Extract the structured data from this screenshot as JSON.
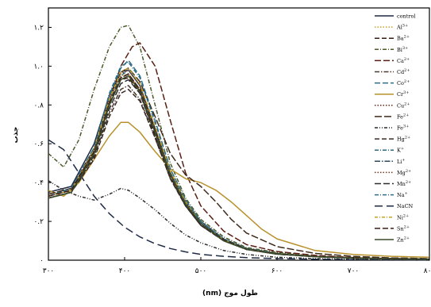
{
  "chart_data": {
    "type": "line",
    "xlabel": "طول موج (nm)",
    "ylabel": "جذب",
    "xlim": [
      300,
      800
    ],
    "ylim": [
      0,
      1.3
    ],
    "x_ticks": [
      300,
      400,
      500,
      600,
      700,
      800
    ],
    "x_tick_labels": [
      "۳۰۰",
      "۴۰۰",
      "۵۰۰",
      "۶۰۰",
      "۷۰۰",
      "۸۰۰"
    ],
    "y_ticks": [
      0,
      0.2,
      0.4,
      0.6,
      0.8,
      1.0,
      1.2
    ],
    "y_tick_labels": [
      "۰",
      "۰.۲",
      "۰.۴",
      "۰.۶",
      "۰.۸",
      "۱.۰",
      "۱.۲"
    ],
    "grid": false,
    "legend_position": "right",
    "legend_labels": [
      "control",
      "Al3+",
      "Ba2+",
      "Bi3+",
      "Ca2+",
      "Cd2+",
      "Co2+",
      "Cr3+",
      "Cu2+",
      "Fe2+",
      "Fe3+",
      "Hg2+",
      "K+",
      "Li+",
      "Mg2+",
      "Mn2+",
      "Na+",
      "NaCN",
      "Ni2+",
      "Sn2+",
      "Zn2+"
    ],
    "series": [
      {
        "name": "control",
        "color": "#1f2a44",
        "dash": "",
        "x": [
          300,
          330,
          360,
          380,
          395,
          405,
          420,
          440,
          460,
          480,
          500,
          530,
          560,
          600,
          650,
          700,
          750,
          800
        ],
        "y": [
          0.35,
          0.38,
          0.6,
          0.85,
          0.97,
          0.98,
          0.9,
          0.68,
          0.45,
          0.3,
          0.2,
          0.11,
          0.06,
          0.035,
          0.02,
          0.012,
          0.008,
          0.005
        ]
      },
      {
        "name": "Al3+",
        "color": "#c9a227",
        "dash": "1.5,2",
        "x": [
          300,
          330,
          360,
          380,
          395,
          405,
          420,
          440,
          460,
          480,
          500,
          530,
          560,
          600,
          650,
          700,
          750,
          800
        ],
        "y": [
          0.33,
          0.36,
          0.57,
          0.82,
          0.95,
          0.96,
          0.88,
          0.66,
          0.43,
          0.29,
          0.19,
          0.105,
          0.058,
          0.033,
          0.019,
          0.011,
          0.007,
          0.005
        ]
      },
      {
        "name": "Ba2+",
        "color": "#3a1b14",
        "dash": "6,3",
        "x": [
          300,
          330,
          360,
          380,
          395,
          405,
          420,
          440,
          460,
          480,
          500,
          530,
          560,
          600,
          650,
          700,
          750,
          800
        ],
        "y": [
          0.32,
          0.35,
          0.55,
          0.8,
          0.93,
          0.94,
          0.86,
          0.64,
          0.42,
          0.28,
          0.18,
          0.1,
          0.056,
          0.032,
          0.018,
          0.011,
          0.007,
          0.005
        ]
      },
      {
        "name": "Bi3+",
        "color": "#4a5a2a",
        "dash": "5,2,1,2",
        "x": [
          300,
          320,
          340,
          360,
          380,
          395,
          405,
          420,
          440,
          460,
          480,
          500,
          530,
          560,
          600,
          650,
          700,
          750,
          800
        ],
        "y": [
          0.55,
          0.48,
          0.62,
          0.88,
          1.1,
          1.2,
          1.21,
          1.1,
          0.8,
          0.5,
          0.32,
          0.21,
          0.12,
          0.065,
          0.04,
          0.022,
          0.013,
          0.008,
          0.005
        ]
      },
      {
        "name": "Ca2+",
        "color": "#5a1e12",
        "dash": "8,3",
        "x": [
          300,
          330,
          360,
          380,
          395,
          410,
          420,
          440,
          460,
          480,
          500,
          530,
          560,
          600,
          650,
          700,
          750,
          800
        ],
        "y": [
          0.34,
          0.37,
          0.55,
          0.82,
          1.0,
          1.1,
          1.12,
          1.0,
          0.72,
          0.45,
          0.28,
          0.15,
          0.08,
          0.045,
          0.025,
          0.014,
          0.009,
          0.006
        ]
      },
      {
        "name": "Cd2+",
        "color": "#4a3a30",
        "dash": "6,2,1.5,2",
        "x": [
          300,
          330,
          360,
          380,
          395,
          405,
          420,
          440,
          460,
          480,
          500,
          530,
          560,
          600,
          650,
          700,
          750,
          800
        ],
        "y": [
          0.32,
          0.35,
          0.53,
          0.76,
          0.88,
          0.9,
          0.83,
          0.63,
          0.42,
          0.28,
          0.18,
          0.1,
          0.055,
          0.031,
          0.018,
          0.011,
          0.007,
          0.005
        ]
      },
      {
        "name": "Co2+",
        "color": "#2f6f86",
        "dash": "7,3",
        "x": [
          300,
          330,
          360,
          380,
          395,
          405,
          420,
          440,
          460,
          480,
          500,
          530,
          560,
          600,
          650,
          700,
          750,
          800
        ],
        "y": [
          0.33,
          0.37,
          0.58,
          0.85,
          0.99,
          1.03,
          0.95,
          0.72,
          0.47,
          0.31,
          0.2,
          0.11,
          0.06,
          0.034,
          0.019,
          0.011,
          0.007,
          0.005
        ]
      },
      {
        "name": "Cr3+",
        "color": "#b8912a",
        "dash": "",
        "x": [
          300,
          320,
          340,
          360,
          380,
          395,
          405,
          420,
          440,
          460,
          480,
          500,
          520,
          540,
          560,
          580,
          600,
          650,
          700,
          750,
          800
        ],
        "y": [
          0.36,
          0.33,
          0.4,
          0.52,
          0.64,
          0.71,
          0.71,
          0.66,
          0.56,
          0.47,
          0.42,
          0.4,
          0.36,
          0.3,
          0.23,
          0.16,
          0.11,
          0.05,
          0.03,
          0.02,
          0.015
        ]
      },
      {
        "name": "Cu2+",
        "color": "#6e2a1e",
        "dash": "1.5,2",
        "x": [
          300,
          330,
          360,
          380,
          395,
          405,
          420,
          440,
          460,
          480,
          500,
          530,
          560,
          600,
          650,
          700,
          750,
          800
        ],
        "y": [
          0.33,
          0.36,
          0.56,
          0.8,
          0.94,
          0.96,
          0.88,
          0.66,
          0.44,
          0.29,
          0.19,
          0.105,
          0.058,
          0.033,
          0.019,
          0.011,
          0.007,
          0.005
        ]
      },
      {
        "name": "Fe2+",
        "color": "#3e2a1a",
        "dash": "9,3",
        "x": [
          300,
          330,
          360,
          380,
          395,
          405,
          420,
          440,
          460,
          480,
          500,
          520,
          540,
          560,
          600,
          650,
          700,
          750,
          800
        ],
        "y": [
          0.34,
          0.37,
          0.57,
          0.83,
          0.97,
          0.99,
          0.92,
          0.74,
          0.55,
          0.44,
          0.38,
          0.3,
          0.21,
          0.14,
          0.07,
          0.035,
          0.02,
          0.012,
          0.008
        ]
      },
      {
        "name": "Fe3+",
        "color": "#2a2a2a",
        "dash": "4,2,1,2,1,2",
        "x": [
          300,
          320,
          340,
          360,
          380,
          395,
          405,
          420,
          440,
          460,
          480,
          500,
          530,
          560,
          600,
          650,
          700,
          750,
          800
        ],
        "y": [
          0.41,
          0.36,
          0.33,
          0.31,
          0.34,
          0.37,
          0.36,
          0.32,
          0.26,
          0.19,
          0.13,
          0.09,
          0.05,
          0.03,
          0.015,
          0.008,
          0.004,
          0.002,
          0.001
        ]
      },
      {
        "name": "Hg2+",
        "color": "#3a2a25",
        "dash": "6,3",
        "x": [
          300,
          330,
          360,
          380,
          395,
          405,
          420,
          440,
          460,
          480,
          500,
          530,
          560,
          600,
          650,
          700,
          750,
          800
        ],
        "y": [
          0.32,
          0.35,
          0.52,
          0.74,
          0.86,
          0.88,
          0.82,
          0.63,
          0.42,
          0.28,
          0.18,
          0.1,
          0.055,
          0.031,
          0.018,
          0.011,
          0.007,
          0.005
        ]
      },
      {
        "name": "K+",
        "color": "#2e6a80",
        "dash": "5,2,1,2",
        "x": [
          300,
          330,
          360,
          380,
          395,
          405,
          420,
          440,
          460,
          480,
          500,
          530,
          560,
          600,
          650,
          700,
          750,
          800
        ],
        "y": [
          0.33,
          0.36,
          0.56,
          0.82,
          0.95,
          0.98,
          0.9,
          0.68,
          0.45,
          0.3,
          0.19,
          0.105,
          0.058,
          0.033,
          0.019,
          0.011,
          0.007,
          0.005
        ]
      },
      {
        "name": "Li+",
        "color": "#2a4a5a",
        "dash": "7,2,1.5,2",
        "x": [
          300,
          330,
          360,
          380,
          395,
          405,
          420,
          440,
          460,
          480,
          500,
          530,
          560,
          600,
          650,
          700,
          750,
          800
        ],
        "y": [
          0.32,
          0.35,
          0.55,
          0.8,
          0.93,
          0.95,
          0.87,
          0.66,
          0.44,
          0.29,
          0.19,
          0.1,
          0.056,
          0.032,
          0.018,
          0.011,
          0.007,
          0.005
        ]
      },
      {
        "name": "Mg2+",
        "color": "#7a3a20",
        "dash": "1.5,2",
        "x": [
          300,
          330,
          360,
          380,
          395,
          405,
          420,
          440,
          460,
          480,
          500,
          530,
          560,
          600,
          650,
          700,
          750,
          800
        ],
        "y": [
          0.33,
          0.36,
          0.57,
          0.83,
          0.96,
          0.98,
          0.9,
          0.68,
          0.45,
          0.3,
          0.19,
          0.105,
          0.058,
          0.033,
          0.019,
          0.011,
          0.007,
          0.005
        ]
      },
      {
        "name": "Mn2+",
        "color": "#2e2e2e",
        "dash": "8,3",
        "x": [
          300,
          330,
          360,
          380,
          395,
          405,
          420,
          440,
          460,
          480,
          500,
          530,
          560,
          600,
          650,
          700,
          750,
          800
        ],
        "y": [
          0.32,
          0.35,
          0.54,
          0.78,
          0.91,
          0.93,
          0.86,
          0.65,
          0.43,
          0.28,
          0.18,
          0.1,
          0.056,
          0.032,
          0.018,
          0.011,
          0.007,
          0.005
        ]
      },
      {
        "name": "Na+",
        "color": "#2f6f86",
        "dash": "5,2,1,2",
        "x": [
          300,
          330,
          360,
          380,
          395,
          405,
          420,
          440,
          460,
          480,
          500,
          530,
          560,
          600,
          650,
          700,
          750,
          800
        ],
        "y": [
          0.33,
          0.37,
          0.58,
          0.86,
          1.0,
          1.02,
          0.94,
          0.71,
          0.47,
          0.31,
          0.2,
          0.11,
          0.06,
          0.034,
          0.019,
          0.011,
          0.007,
          0.005
        ]
      },
      {
        "name": "NaCN",
        "color": "#1f2a44",
        "dash": "10,5",
        "x": [
          300,
          320,
          340,
          360,
          380,
          400,
          420,
          440,
          460,
          480,
          500,
          530,
          560,
          600,
          650,
          700,
          750,
          800
        ],
        "y": [
          0.62,
          0.57,
          0.45,
          0.33,
          0.24,
          0.17,
          0.12,
          0.085,
          0.06,
          0.043,
          0.03,
          0.02,
          0.013,
          0.008,
          0.005,
          0.003,
          0.002,
          0.001
        ]
      },
      {
        "name": "Ni2+",
        "color": "#c9a227",
        "dash": "4,2,1,2",
        "x": [
          300,
          330,
          360,
          380,
          395,
          405,
          420,
          440,
          460,
          480,
          500,
          530,
          560,
          600,
          650,
          700,
          750,
          800
        ],
        "y": [
          0.33,
          0.36,
          0.57,
          0.83,
          0.97,
          0.99,
          0.91,
          0.69,
          0.46,
          0.3,
          0.19,
          0.105,
          0.058,
          0.033,
          0.019,
          0.011,
          0.007,
          0.005
        ]
      },
      {
        "name": "Sn2+",
        "color": "#3a1b14",
        "dash": "7,3",
        "x": [
          300,
          330,
          360,
          380,
          395,
          405,
          420,
          440,
          460,
          480,
          500,
          530,
          560,
          600,
          650,
          700,
          750,
          800
        ],
        "y": [
          0.33,
          0.36,
          0.56,
          0.81,
          0.94,
          0.96,
          0.88,
          0.67,
          0.44,
          0.29,
          0.19,
          0.105,
          0.058,
          0.033,
          0.019,
          0.011,
          0.007,
          0.005
        ]
      },
      {
        "name": "Zn2+",
        "color": "#3a4a2a",
        "dash": "",
        "x": [
          300,
          330,
          360,
          380,
          395,
          405,
          420,
          440,
          460,
          480,
          500,
          530,
          560,
          600,
          650,
          700,
          750,
          800
        ],
        "y": [
          0.32,
          0.35,
          0.55,
          0.8,
          0.93,
          0.95,
          0.87,
          0.66,
          0.44,
          0.29,
          0.19,
          0.1,
          0.056,
          0.032,
          0.018,
          0.011,
          0.007,
          0.005
        ]
      }
    ]
  }
}
